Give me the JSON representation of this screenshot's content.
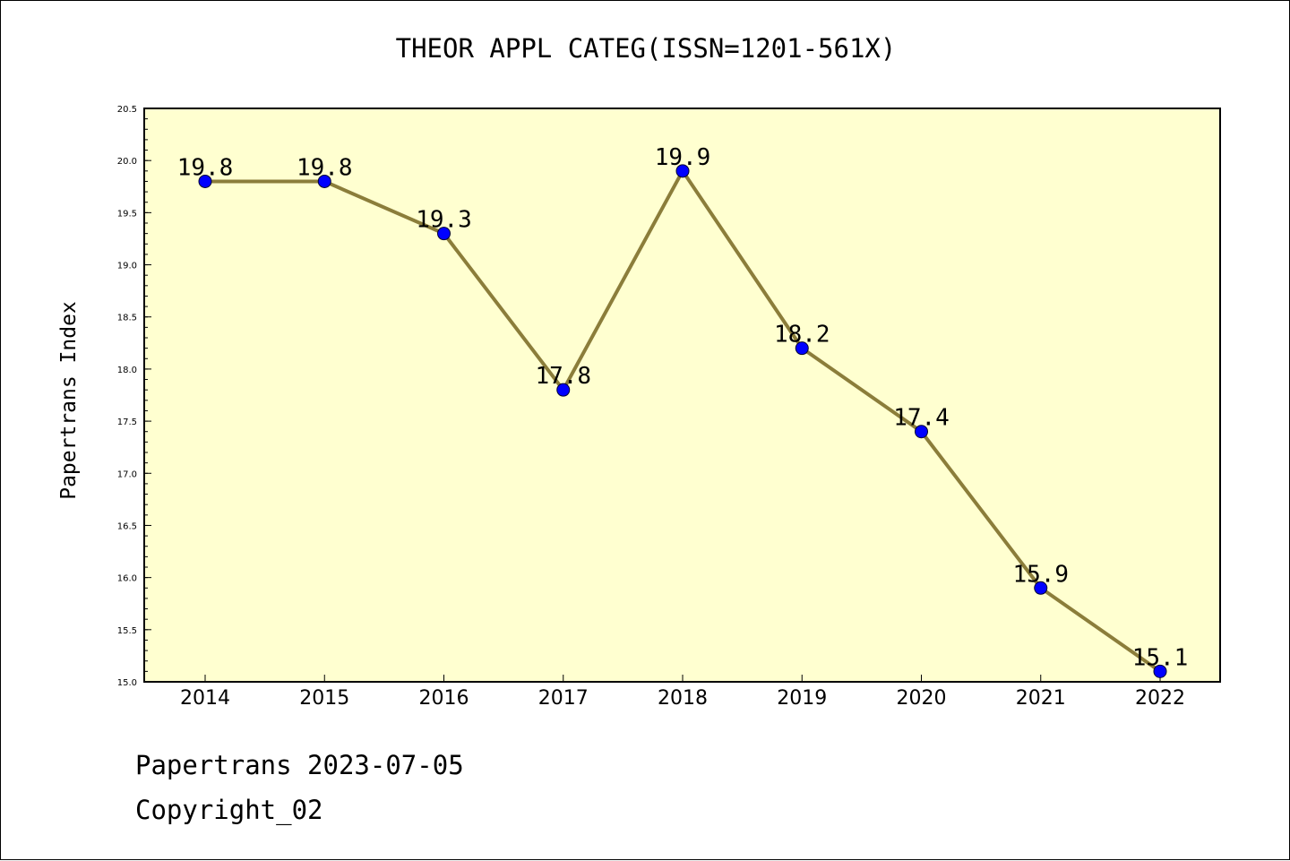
{
  "chart_data": {
    "type": "line",
    "title": "THEOR APPL CATEG(ISSN=1201-561X)",
    "xlabel": "",
    "ylabel": "Papertrans Index",
    "categories": [
      "2014",
      "2015",
      "2016",
      "2017",
      "2018",
      "2019",
      "2020",
      "2021",
      "2022"
    ],
    "series": [
      {
        "values": [
          19.8,
          19.8,
          19.3,
          17.8,
          19.9,
          18.2,
          17.4,
          15.9,
          15.1
        ],
        "data_labels": [
          "19.8",
          "19.8",
          "19.3",
          "17.8",
          "19.9",
          "18.2",
          "17.4",
          "15.9",
          "15.1"
        ]
      }
    ],
    "ylim": [
      15.0,
      20.5
    ],
    "yticks": [
      "15.0",
      "15.5",
      "16.0",
      "16.5",
      "17.0",
      "17.5",
      "18.0",
      "18.5",
      "19.0",
      "19.5",
      "20.0",
      "20.5"
    ],
    "grid": false,
    "colors": {
      "plot_background": "#ffffd0",
      "line": "#8b7d3a",
      "marker": "#0000ff"
    }
  },
  "footer": {
    "line1": "Papertrans 2023-07-05",
    "line2": "Copyright_02"
  }
}
